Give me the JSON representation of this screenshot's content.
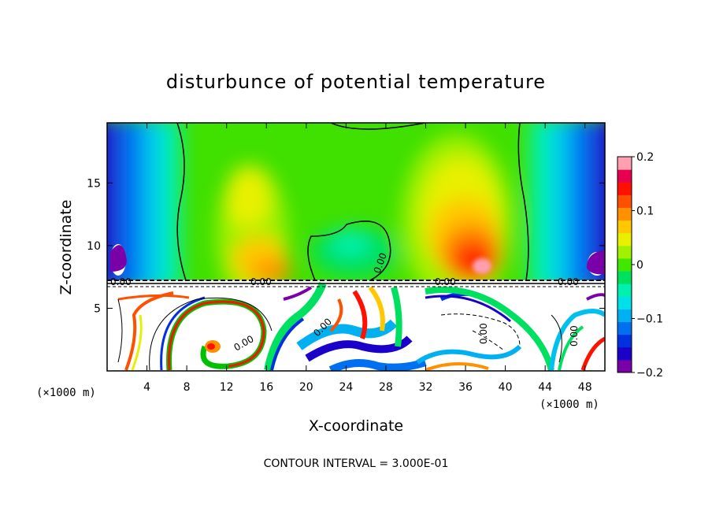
{
  "chart_data": {
    "type": "heatmap",
    "title": "disturbunce of potential temperature",
    "xlabel": "X-coordinate",
    "ylabel": "Z-coordinate",
    "x_unit_label": "(×1000 m)",
    "x_unit_label_right": "(×1000 m)",
    "xlim": [
      0,
      50
    ],
    "ylim": [
      0,
      19.8
    ],
    "x_ticks": [
      4,
      8,
      12,
      16,
      20,
      24,
      28,
      32,
      36,
      40,
      44,
      48
    ],
    "y_ticks": [
      5,
      10,
      15
    ],
    "colorbar": {
      "range": [
        -0.2,
        0.2
      ],
      "ticks": [
        "0.2",
        "0.1",
        "0",
        "−0.1",
        "−0.2"
      ],
      "colors": [
        "#7a00a8",
        "#1a00c8",
        "#0030e0",
        "#0070f0",
        "#00b0f0",
        "#00e0e8",
        "#00f0b0",
        "#00e060",
        "#40e800",
        "#a0f000",
        "#e8f000",
        "#ffc800",
        "#ff9000",
        "#ff5000",
        "#ff1000",
        "#e80050",
        "#ff9fb0"
      ]
    },
    "contour_labels": [
      "0.00",
      "0.00",
      "0.00",
      "0.00",
      "0.00",
      "0.00",
      "0.00",
      "0.00",
      "0.00"
    ],
    "contour_interval_text": "CONTOUR INTERVAL = 3.000E-01",
    "grid": false,
    "notes_visible": "upper layer (z>7.3) smooth field; lower layer (z<7.3) turbulent"
  }
}
